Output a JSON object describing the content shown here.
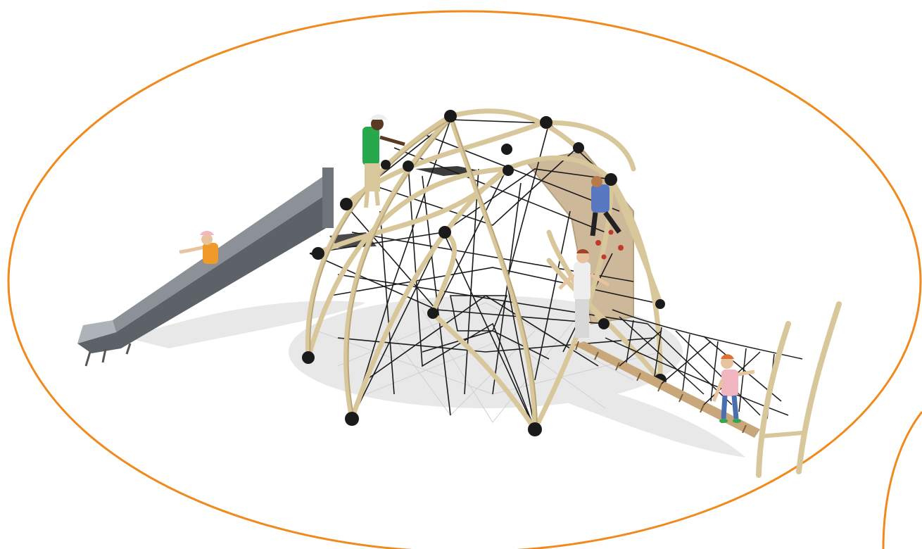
{
  "palette": {
    "background": "#ffffff",
    "ellipse_outline": "#f08a1c",
    "frame_tube": "#d9c79c",
    "frame_tube_shadow": "#b9a679",
    "joint_ball": "#1a1a1a",
    "rope_net": "#1b1b1b",
    "slide_metal": "#5d6168",
    "slide_metal_light": "#aeb3ba",
    "panel_board": "#cdb89a",
    "ground_shadow": "#e3e3e3",
    "plank": "#c8a77a"
  },
  "icons": {
    "outline": "orange-ellipse-outline",
    "equipment": "playground-climbing-dome",
    "slide": "metal-slide",
    "bridge": "rope-bridge",
    "figures": "child-figures"
  }
}
